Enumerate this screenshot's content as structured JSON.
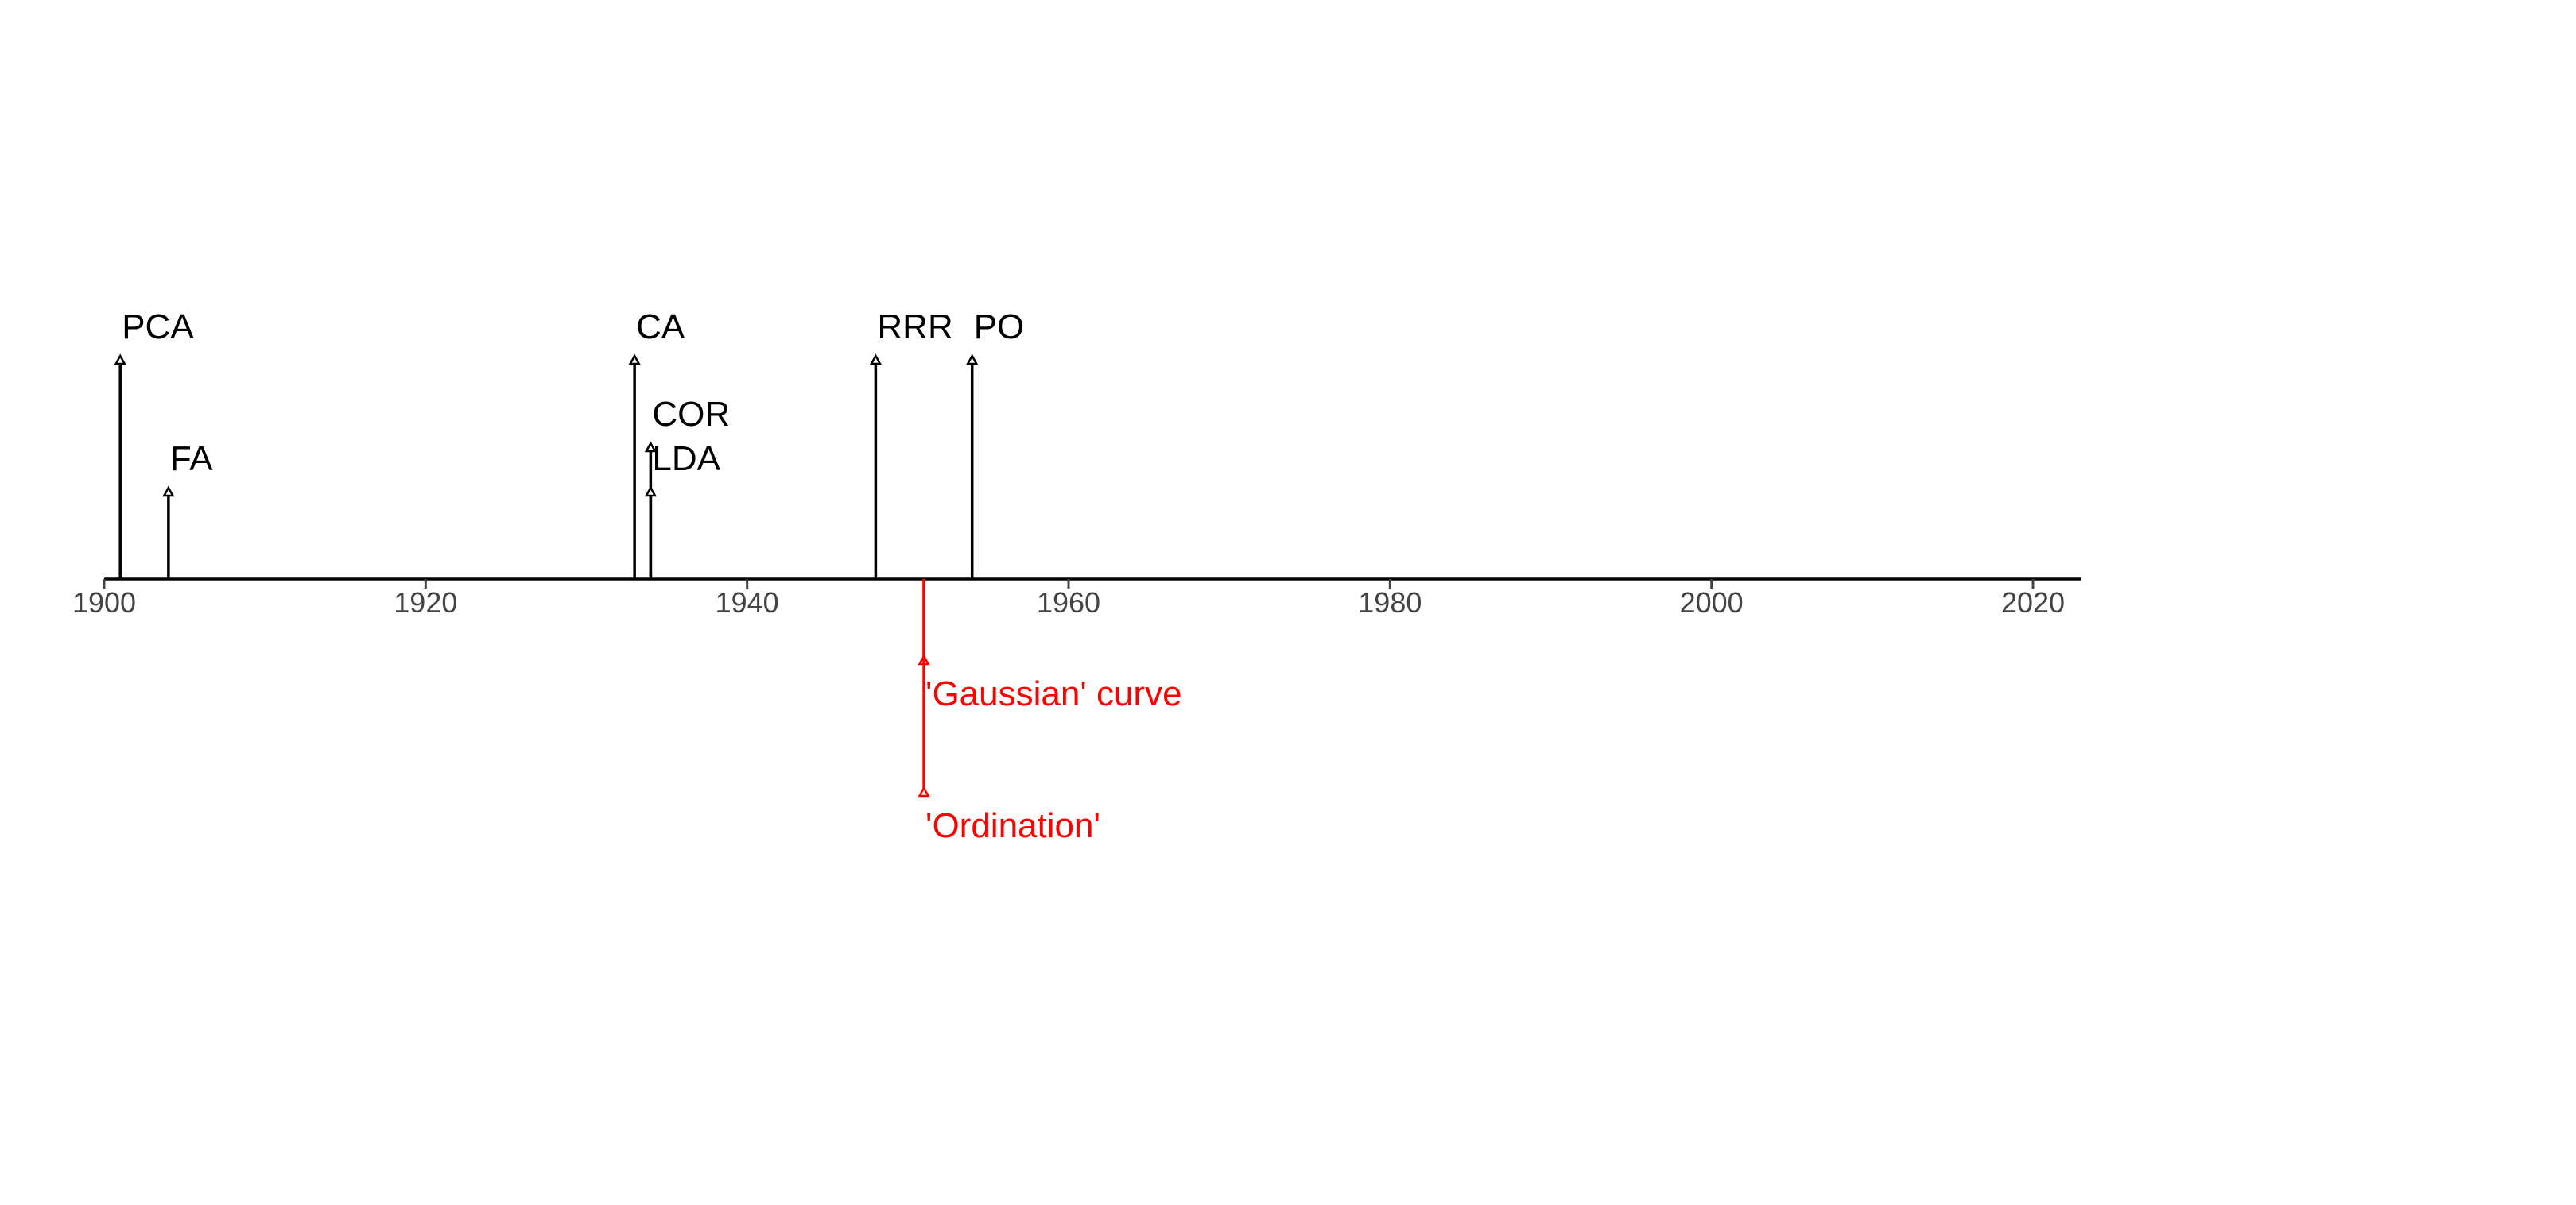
{
  "chart_data": {
    "type": "timeline",
    "title": "",
    "xlabel": "",
    "ylabel": "",
    "xlim": [
      1900,
      2023
    ],
    "ticks": [
      1900,
      1920,
      1940,
      1960,
      1980,
      2000,
      2020
    ],
    "tick_labels": [
      "1900",
      "1920",
      "1940",
      "1960",
      "1980",
      "2000",
      "2020"
    ],
    "grid": false,
    "legend": "none",
    "series": [
      {
        "side": "above",
        "color": "#000000",
        "events": [
          {
            "year": 1901,
            "label": "PCA",
            "level": "high"
          },
          {
            "year": 1904,
            "label": "FA",
            "level": "low"
          },
          {
            "year": 1933,
            "label": "CA",
            "level": "high"
          },
          {
            "year": 1934,
            "label": "COR",
            "level": "mid"
          },
          {
            "year": 1934,
            "label": "LDA",
            "level": "low"
          },
          {
            "year": 1948,
            "label": "RRR",
            "level": "high"
          },
          {
            "year": 1954,
            "label": "PO",
            "level": "high"
          }
        ]
      },
      {
        "side": "below",
        "color": "#ff0000",
        "events": [
          {
            "year": 1951,
            "label": "'Gaussian' curve",
            "level": "near"
          },
          {
            "year": 1951,
            "label": "'Ordination'",
            "level": "far"
          }
        ]
      }
    ]
  }
}
